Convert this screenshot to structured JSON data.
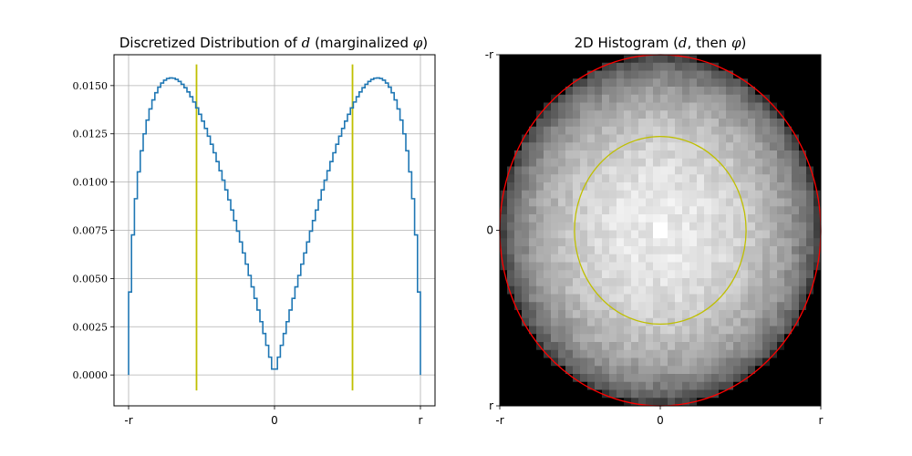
{
  "chart_data": [
    {
      "type": "line",
      "title_prefix": "Discretized Distribution of",
      "title_var": "d",
      "title_mid": "(marginalized",
      "title_var2": "φ",
      "title_suffix": ")",
      "xlabel": "",
      "ylabel": "",
      "xlim": [
        -1.0,
        1.0
      ],
      "ylim": [
        -0.0016,
        0.0166
      ],
      "xticks": [
        {
          "value": -1,
          "label": "-r"
        },
        {
          "value": 0,
          "label": "0"
        },
        {
          "value": 1,
          "label": "r"
        }
      ],
      "yticks": [
        {
          "value": 0.0,
          "label": "0.0000"
        },
        {
          "value": 0.0025,
          "label": "0.0025"
        },
        {
          "value": 0.005,
          "label": "0.0050"
        },
        {
          "value": 0.0075,
          "label": "0.0075"
        },
        {
          "value": 0.01,
          "label": "0.0100"
        },
        {
          "value": 0.0125,
          "label": "0.0125"
        },
        {
          "value": 0.015,
          "label": "0.0150"
        }
      ],
      "grid": true,
      "n_bins": 100,
      "series_color": "#1f77b4",
      "peak": 0.0154,
      "vlines": [
        {
          "x": -0.5345,
          "ymin": -0.0008,
          "ymax": 0.0161,
          "color": "#bfbf00"
        },
        {
          "x": 0.5345,
          "ymin": -0.0008,
          "ymax": 0.0161,
          "color": "#bfbf00"
        }
      ]
    },
    {
      "type": "heatmap",
      "title_prefix": "2D Histogram (",
      "title_var": "d",
      "title_mid": ", then",
      "title_var2": "φ",
      "title_suffix": ")",
      "xlim": [
        -1.0,
        1.0
      ],
      "ylim": [
        -1.0,
        1.0
      ],
      "xticks": [
        {
          "value": -1,
          "label": "-r"
        },
        {
          "value": 0,
          "label": "0"
        },
        {
          "value": 1,
          "label": "r"
        }
      ],
      "yticks": [
        {
          "value": 1,
          "label": "-r"
        },
        {
          "value": 0,
          "label": "0"
        },
        {
          "value": -1,
          "label": "r"
        }
      ],
      "grid_cells": 44,
      "colormap": "gray",
      "circles": [
        {
          "radius": 1.0,
          "color": "#ff0000"
        },
        {
          "radius": 0.5345,
          "color": "#bfbf00"
        }
      ]
    }
  ]
}
